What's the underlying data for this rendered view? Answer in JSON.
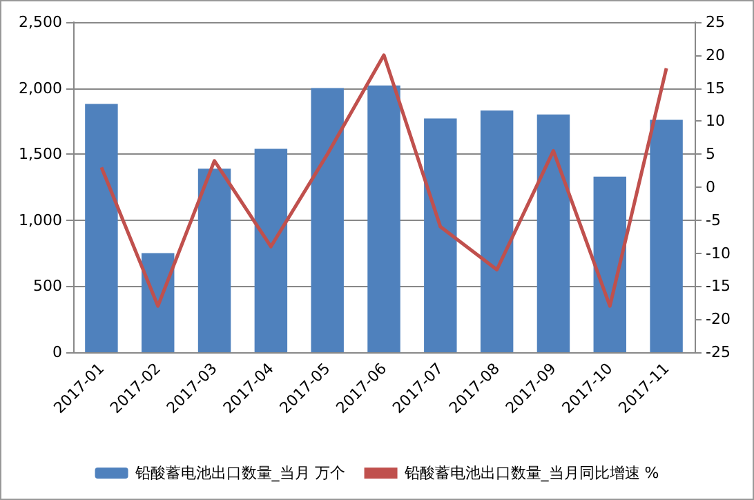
{
  "chart_data": {
    "type": "bar",
    "categories": [
      "2017-01",
      "2017-02",
      "2017-03",
      "2017-04",
      "2017-05",
      "2017-06",
      "2017-07",
      "2017-08",
      "2017-09",
      "2017-10",
      "2017-11"
    ],
    "series": [
      {
        "name": "铅酸蓄电池出口数量_当月 万个",
        "color": "#4f81bd",
        "values": [
          1880,
          750,
          1390,
          1540,
          2000,
          2020,
          1770,
          1830,
          1800,
          1330,
          1760
        ]
      },
      {
        "name": "铅酸蓄电池出口数量_当月同比增速 %",
        "type": "line",
        "axis": "y2",
        "color": "#c0504d",
        "values": [
          3,
          -18,
          4,
          -9,
          5,
          20,
          -6,
          -12.5,
          5.5,
          -18,
          18
        ]
      }
    ],
    "ylim": [
      0,
      2500
    ],
    "yticks": [
      0,
      500,
      {
        "value": 1000,
        "label": "1,000"
      },
      {
        "value": 1500,
        "label": "1,500"
      },
      {
        "value": 2000,
        "label": "2,000"
      },
      {
        "value": 2500,
        "label": "2,500"
      }
    ],
    "y2lim": [
      -25,
      25
    ],
    "y2ticks": [
      -25,
      -20,
      -15,
      -10,
      -5,
      0,
      5,
      10,
      15,
      20,
      25
    ],
    "grid": "y",
    "legend": "bottom",
    "marker": "none",
    "line_style": "solid"
  }
}
